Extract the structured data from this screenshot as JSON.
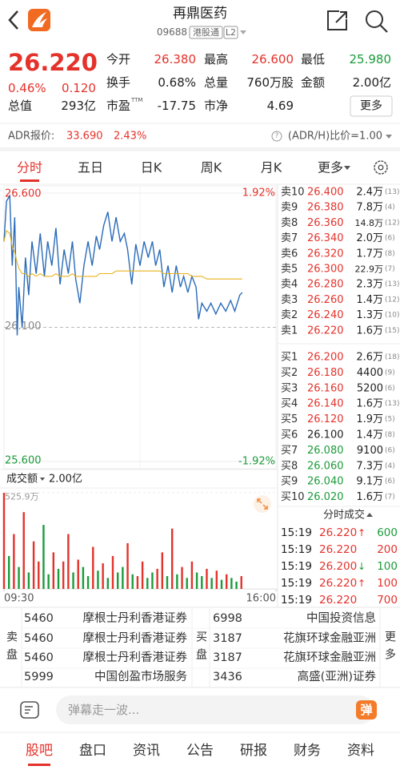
{
  "colors": {
    "up": "#e4322b",
    "down": "#1b9b3a",
    "flat": "#222222"
  },
  "header": {
    "title": "再鼎医药",
    "code": "09688",
    "badges": [
      "港股通",
      "L2"
    ]
  },
  "quote": {
    "price": "26.220",
    "change_pct": "0.46%",
    "change": "0.120",
    "total_value": {
      "label": "总值",
      "value": "293亿"
    },
    "stats": [
      [
        {
          "label": "今开",
          "value": "26.380",
          "tone": "up"
        },
        {
          "label": "最高",
          "value": "26.600",
          "tone": "up"
        },
        {
          "label": "最低",
          "value": "25.980",
          "tone": "down"
        }
      ],
      [
        {
          "label": "换手",
          "value": "0.68%"
        },
        {
          "label": "总量",
          "value": "760万股"
        },
        {
          "label": "金额",
          "value": "2.00亿"
        }
      ],
      [
        {
          "label": "市盈",
          "sup": "TTM",
          "value": "-17.75"
        },
        {
          "label": "市净",
          "value": "4.69"
        }
      ]
    ],
    "more": "更多"
  },
  "adr": {
    "label": "ADR报价:",
    "price": "33.690",
    "pct": "2.43%",
    "ratio": "(ADR/H)比价=1.00"
  },
  "tabs": {
    "items": [
      "分时",
      "五日",
      "日K",
      "周K",
      "月K",
      "更多"
    ],
    "active": 0
  },
  "chart_data": [
    {
      "type": "line",
      "x": [
        0,
        3,
        7,
        10,
        13,
        16,
        18,
        22,
        26,
        30,
        34,
        39,
        44,
        49,
        53,
        58,
        63,
        68,
        73,
        78,
        83,
        87,
        92,
        97,
        102,
        107,
        112,
        116,
        121,
        126,
        131,
        136,
        141,
        146,
        150,
        155,
        160,
        165,
        170,
        175,
        180,
        184,
        189,
        194,
        199,
        204,
        209,
        214,
        218,
        223,
        228,
        233,
        236,
        240,
        246,
        251,
        257,
        263,
        269,
        275,
        280,
        286,
        289
      ],
      "series": [
        {
          "color": "#2a6bb8",
          "values": [
            26.42,
            26.57,
            26.59,
            26.33,
            26.51,
            26.07,
            26.25,
            26.1,
            26.36,
            26.22,
            26.42,
            26.3,
            26.45,
            26.29,
            26.42,
            26.33,
            26.47,
            26.26,
            26.39,
            26.3,
            26.42,
            26.28,
            26.19,
            26.33,
            26.42,
            26.33,
            26.44,
            26.39,
            26.48,
            26.53,
            26.42,
            26.51,
            26.42,
            26.45,
            26.39,
            26.26,
            26.41,
            26.33,
            26.42,
            26.36,
            26.42,
            26.33,
            26.39,
            26.25,
            26.33,
            26.23,
            26.33,
            26.25,
            26.29,
            26.23,
            26.29,
            26.25,
            26.13,
            26.19,
            26.16,
            26.19,
            26.15,
            26.19,
            26.16,
            26.2,
            26.16,
            26.22,
            26.23
          ]
        },
        {
          "color": "#e8b21f",
          "values": [
            26.42,
            26.46,
            26.45,
            26.4,
            26.38,
            26.34,
            26.32,
            26.3,
            26.3,
            26.29,
            26.3,
            26.29,
            26.3,
            26.29,
            26.29,
            26.29,
            26.3,
            26.29,
            26.29,
            26.29,
            26.3,
            26.29,
            26.29,
            26.29,
            26.29,
            26.29,
            26.29,
            26.3,
            26.3,
            26.3,
            26.3,
            26.31,
            26.31,
            26.31,
            26.31,
            26.31,
            26.31,
            26.31,
            26.31,
            26.31,
            26.31,
            26.31,
            26.31,
            26.3,
            26.3,
            26.3,
            26.3,
            26.3,
            26.3,
            26.3,
            26.29,
            26.29,
            26.29,
            26.29,
            26.28,
            26.28,
            26.28,
            26.28,
            26.28,
            26.28,
            26.28,
            26.28,
            26.28
          ]
        }
      ],
      "xlim": [
        0,
        330
      ],
      "ylim": [
        25.6,
        26.6
      ],
      "yticks": [
        {
          "value": 26.6,
          "label": "26.600"
        },
        {
          "value": 26.1,
          "label": "26.100"
        },
        {
          "value": 25.6,
          "label": "25.600"
        }
      ],
      "y2lim": [
        -1.92,
        1.92
      ],
      "y2ticks": [
        {
          "value": 1.92,
          "label": "1.92%"
        },
        {
          "value": -1.92,
          "label": "-1.92%"
        }
      ]
    },
    {
      "type": "bar",
      "title": "成交额",
      "total": "2.00亿",
      "x": [
        0,
        6,
        12,
        18,
        24,
        30,
        36,
        42,
        48,
        54,
        60,
        66,
        72,
        78,
        84,
        90,
        96,
        102,
        108,
        114,
        120,
        126,
        132,
        138,
        144,
        150,
        156,
        162,
        168,
        174,
        180,
        186,
        192,
        198,
        204,
        210,
        216,
        222,
        228,
        234,
        240,
        246,
        252,
        258,
        264,
        270,
        276,
        282,
        288
      ],
      "values": [
        525.9,
        180,
        300,
        120,
        420,
        90,
        260,
        150,
        350,
        80,
        200,
        110,
        150,
        300,
        90,
        160,
        120,
        70,
        230,
        100,
        140,
        60,
        180,
        90,
        120,
        250,
        80,
        70,
        150,
        60,
        90,
        110,
        200,
        70,
        330,
        80,
        120,
        60,
        150,
        90,
        70,
        110,
        60,
        100,
        50,
        80,
        60,
        40,
        70
      ],
      "tones": [
        "up",
        "down",
        "up",
        "down",
        "up",
        "down",
        "up",
        "up",
        "down",
        "down",
        "up",
        "down",
        "up",
        "up",
        "down",
        "up",
        "down",
        "down",
        "up",
        "down",
        "up",
        "down",
        "up",
        "down",
        "down",
        "up",
        "down",
        "up",
        "up",
        "down",
        "down",
        "up",
        "up",
        "down",
        "up",
        "down",
        "up",
        "down",
        "up",
        "down",
        "down",
        "up",
        "down",
        "up",
        "down",
        "up",
        "down",
        "down",
        "up"
      ],
      "xlim": [
        0,
        330
      ],
      "xticks": [
        {
          "value": 0,
          "label": "09:30"
        },
        {
          "value": 330,
          "label": "16:00"
        }
      ],
      "ylim": [
        0,
        525.9
      ],
      "yticks": [
        {
          "value": 525.9,
          "label": "525.9万"
        }
      ]
    }
  ],
  "order_book": {
    "asks": [
      {
        "label": "卖10",
        "price": "26.400",
        "volume": "2.4万",
        "count": "(13)"
      },
      {
        "label": "卖9",
        "price": "26.380",
        "volume": "7.8万",
        "count": "(4)"
      },
      {
        "label": "卖8",
        "price": "26.360",
        "volume": "14.8万",
        "count": "(12)"
      },
      {
        "label": "卖7",
        "price": "26.340",
        "volume": "2.0万",
        "count": "(6)"
      },
      {
        "label": "卖6",
        "price": "26.320",
        "volume": "1.7万",
        "count": "(8)"
      },
      {
        "label": "卖5",
        "price": "26.300",
        "volume": "22.9万",
        "count": "(7)"
      },
      {
        "label": "卖4",
        "price": "26.280",
        "volume": "2.3万",
        "count": "(13)"
      },
      {
        "label": "卖3",
        "price": "26.260",
        "volume": "1.4万",
        "count": "(12)"
      },
      {
        "label": "卖2",
        "price": "26.240",
        "volume": "1.3万",
        "count": "(10)"
      },
      {
        "label": "卖1",
        "price": "26.220",
        "volume": "1.6万",
        "count": "(15)"
      }
    ],
    "bids": [
      {
        "label": "买1",
        "price": "26.200",
        "volume": "2.6万",
        "count": "(18)"
      },
      {
        "label": "买2",
        "price": "26.180",
        "volume": "4400",
        "count": "(9)"
      },
      {
        "label": "买3",
        "price": "26.160",
        "volume": "5200",
        "count": "(6)"
      },
      {
        "label": "买4",
        "price": "26.140",
        "volume": "1.6万",
        "count": "(13)"
      },
      {
        "label": "买5",
        "price": "26.120",
        "volume": "1.9万",
        "count": "(5)"
      },
      {
        "label": "买6",
        "price": "26.100",
        "volume": "1.4万",
        "count": "(8)"
      },
      {
        "label": "买7",
        "price": "26.080",
        "volume": "9100",
        "count": "(6)"
      },
      {
        "label": "买8",
        "price": "26.060",
        "volume": "7.3万",
        "count": "(4)"
      },
      {
        "label": "买9",
        "price": "26.040",
        "volume": "9.1万",
        "count": "(6)"
      },
      {
        "label": "买10",
        "price": "26.020",
        "volume": "1.6万",
        "count": "(7)"
      }
    ]
  },
  "ticks": {
    "title": "分时成交",
    "rows": [
      {
        "time": "15:19",
        "price": "26.220",
        "arrow": "↑",
        "volume": "600",
        "tone": "down"
      },
      {
        "time": "15:19",
        "price": "26.220",
        "volume": "200",
        "tone": "up"
      },
      {
        "time": "15:19",
        "price": "26.200",
        "arrow": "↓",
        "volume": "100",
        "tone": "down"
      },
      {
        "time": "15:19",
        "price": "26.220",
        "arrow": "↑",
        "volume": "100",
        "tone": "up"
      },
      {
        "time": "15:19",
        "price": "26.220",
        "volume": "700",
        "tone": "up"
      }
    ]
  },
  "brokers": {
    "sell_label": "卖盘",
    "buy_label": "买盘",
    "more": "更多",
    "sell": [
      {
        "code": "5460",
        "name": "摩根士丹利香港证券"
      },
      {
        "code": "5460",
        "name": "摩根士丹利香港证券"
      },
      {
        "code": "5460",
        "name": "摩根士丹利香港证券"
      },
      {
        "code": "5999",
        "name": "中国创盈市场服务"
      }
    ],
    "buy": [
      {
        "code": "6998",
        "name": "中国投资信息"
      },
      {
        "code": "3187",
        "name": "花旗环球金融亚洲"
      },
      {
        "code": "3187",
        "name": "花旗环球金融亚洲"
      },
      {
        "code": "3436",
        "name": "高盛(亚洲)证券"
      }
    ]
  },
  "comment": {
    "placeholder": "弹幕走一波...",
    "button": "弹"
  },
  "nav": {
    "items": [
      "股吧",
      "盘口",
      "资讯",
      "公告",
      "研报",
      "财务",
      "资料"
    ],
    "active": 0
  }
}
